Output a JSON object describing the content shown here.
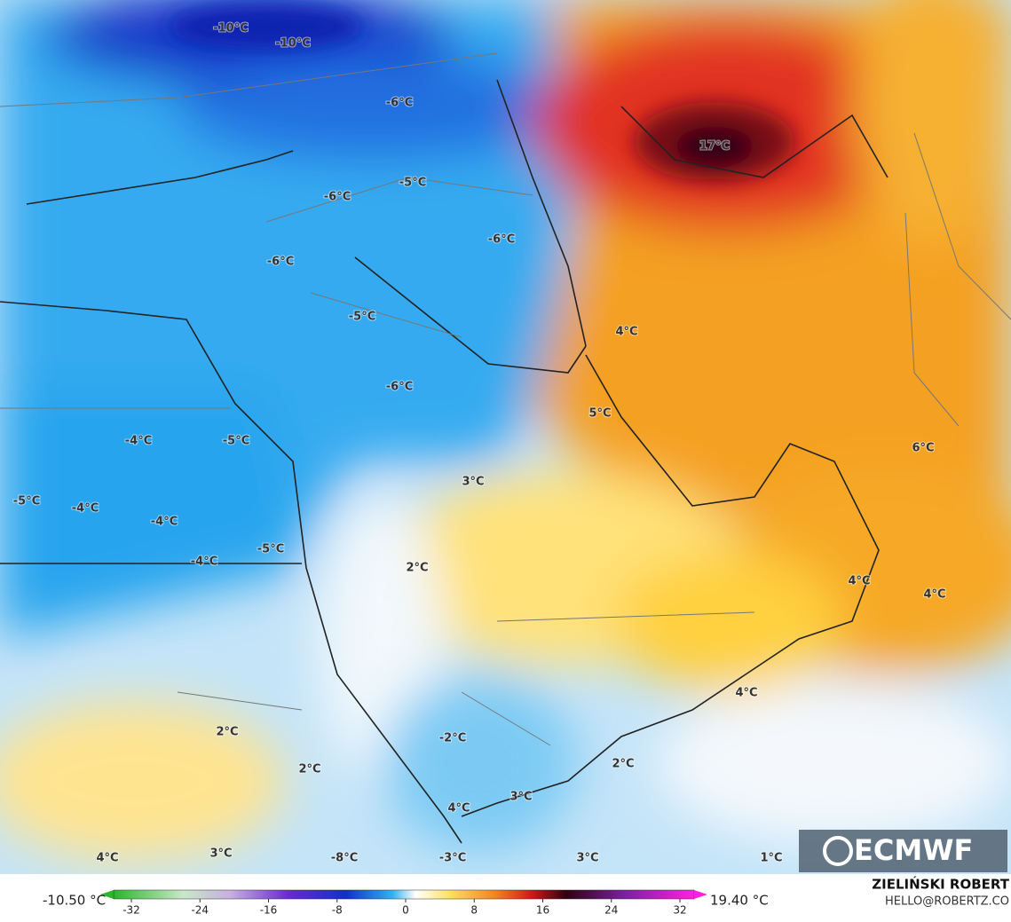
{
  "map": {
    "labels": [
      "-10°C",
      "-10°C",
      "-6°C",
      "-6°C",
      "-5°C",
      "-6°C",
      "-6°C",
      "-5°C",
      "-6°C",
      "17°C",
      "4°C",
      "5°C",
      "6°C",
      "-4°C",
      "-5°C",
      "-5°C",
      "-4°C",
      "-4°C",
      "-5°C",
      "-4°C",
      "3°C",
      "2°C",
      "4°C",
      "4°C",
      "4°C",
      "2°C",
      "-2°C",
      "2°C",
      "2°C",
      "3°C",
      "4°C",
      "4°C",
      "3°C",
      "-8°C",
      "-3°C",
      "3°C",
      "1°C"
    ]
  },
  "legend": {
    "min_label": "-10.50 °C",
    "max_label": "19.40 °C",
    "ticks": [
      -32,
      -24,
      -16,
      -8,
      0,
      8,
      16,
      24,
      32
    ]
  },
  "credits": {
    "author": "ZIELIŃSKI ROBERT",
    "email": "HELLO@ROBERTZ.CO",
    "logo": "ECMWF"
  }
}
